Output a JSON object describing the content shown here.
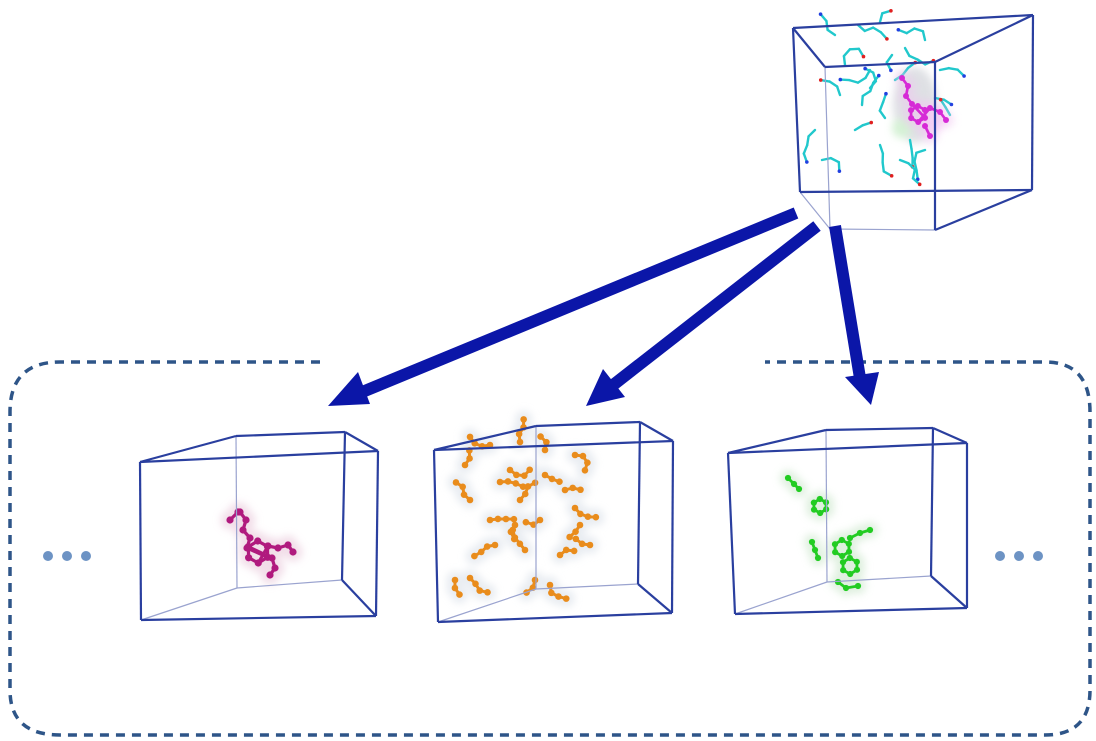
{
  "colors": {
    "cube_edge": "#2a3f9f",
    "cube_back_edge": "#9aa3cf",
    "arrow": "#0b16a8",
    "dashed_border": "#2e5588",
    "ellipsis_dot": "#6d93c4",
    "full_complex_ligand": "#d62ad6",
    "full_complex_residues": "#21c8cc",
    "channel_magenta": "#b01a7e",
    "channel_orange": "#e98c1c",
    "channel_green": "#22cc22",
    "density_halo": "#c9ccd3"
  },
  "cubes": [
    {
      "name": "full-complex-cube",
      "content": "cyan-residues-and-magenta-ligand"
    },
    {
      "name": "magenta-channel-cube",
      "content": "magenta-ligand"
    },
    {
      "name": "orange-channel-cube",
      "content": "orange-fragments"
    },
    {
      "name": "green-channel-cube",
      "content": "green-aromatic-fragments"
    }
  ],
  "ellipsis": [
    {
      "name": "left-ellipsis",
      "dots": 3
    },
    {
      "name": "right-ellipsis",
      "dots": 3
    }
  ]
}
